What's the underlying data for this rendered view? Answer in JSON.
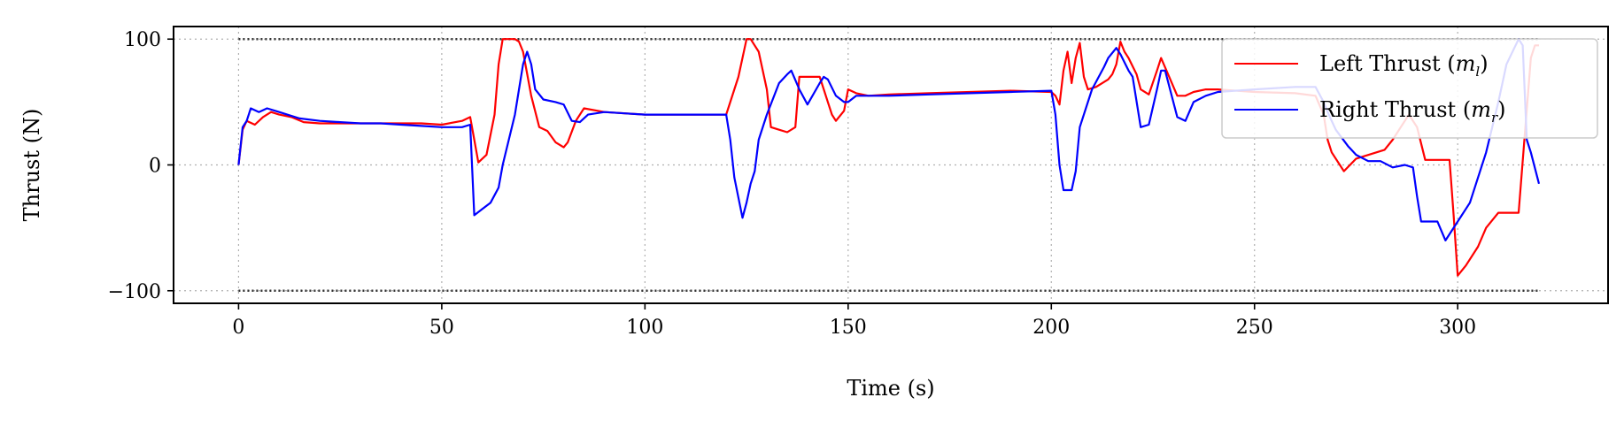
{
  "chart_data": {
    "type": "line",
    "xlabel": "Time (s)",
    "ylabel": "Thrust (N)",
    "xlim": [
      -16,
      337
    ],
    "ylim": [
      -110,
      110
    ],
    "xticks": [
      0,
      50,
      100,
      150,
      200,
      250,
      300
    ],
    "yticks": [
      -100,
      0,
      100
    ],
    "xtick_labels": [
      "0",
      "50",
      "100",
      "150",
      "200",
      "250",
      "300"
    ],
    "ytick_labels": [
      "−100",
      "0",
      "100"
    ],
    "grid": true,
    "limit_lines": [
      100,
      -100
    ],
    "legend_position": "top-right",
    "series": [
      {
        "name": "Left Thrust (m_l)",
        "legend_main": "Left Thrust (",
        "legend_math": "m",
        "legend_sub": "l",
        "legend_close": ")",
        "color": "#ff0000",
        "points": [
          [
            0,
            0
          ],
          [
            1,
            28
          ],
          [
            2,
            35
          ],
          [
            4,
            32
          ],
          [
            6,
            38
          ],
          [
            8,
            42
          ],
          [
            10,
            40
          ],
          [
            13,
            38
          ],
          [
            16,
            34
          ],
          [
            20,
            33
          ],
          [
            25,
            33
          ],
          [
            30,
            33
          ],
          [
            35,
            33
          ],
          [
            40,
            33
          ],
          [
            45,
            33
          ],
          [
            50,
            32
          ],
          [
            55,
            35
          ],
          [
            57,
            38
          ],
          [
            58,
            20
          ],
          [
            59,
            2
          ],
          [
            61,
            8
          ],
          [
            63,
            40
          ],
          [
            64,
            80
          ],
          [
            65,
            100
          ],
          [
            68,
            100
          ],
          [
            69,
            98
          ],
          [
            70,
            90
          ],
          [
            72,
            55
          ],
          [
            74,
            30
          ],
          [
            76,
            27
          ],
          [
            78,
            18
          ],
          [
            80,
            14
          ],
          [
            81,
            18
          ],
          [
            83,
            35
          ],
          [
            85,
            45
          ],
          [
            90,
            42
          ],
          [
            100,
            40
          ],
          [
            110,
            40
          ],
          [
            119,
            40
          ],
          [
            120,
            40
          ],
          [
            121,
            50
          ],
          [
            123,
            70
          ],
          [
            125,
            100
          ],
          [
            126,
            100
          ],
          [
            128,
            90
          ],
          [
            130,
            60
          ],
          [
            131,
            30
          ],
          [
            133,
            28
          ],
          [
            135,
            26
          ],
          [
            137,
            30
          ],
          [
            138,
            70
          ],
          [
            143,
            70
          ],
          [
            144,
            60
          ],
          [
            145,
            50
          ],
          [
            146,
            40
          ],
          [
            147,
            35
          ],
          [
            149,
            43
          ],
          [
            150,
            60
          ],
          [
            152,
            57
          ],
          [
            155,
            55
          ],
          [
            160,
            56
          ],
          [
            170,
            57
          ],
          [
            180,
            58
          ],
          [
            190,
            59
          ],
          [
            200,
            58
          ],
          [
            201,
            55
          ],
          [
            202,
            48
          ],
          [
            203,
            75
          ],
          [
            204,
            90
          ],
          [
            205,
            65
          ],
          [
            206,
            85
          ],
          [
            207,
            97
          ],
          [
            208,
            70
          ],
          [
            209,
            60
          ],
          [
            211,
            62
          ],
          [
            214,
            68
          ],
          [
            215,
            72
          ],
          [
            216,
            80
          ],
          [
            217,
            98
          ],
          [
            218,
            90
          ],
          [
            219,
            85
          ],
          [
            221,
            72
          ],
          [
            222,
            60
          ],
          [
            224,
            56
          ],
          [
            226,
            75
          ],
          [
            227,
            85
          ],
          [
            229,
            70
          ],
          [
            231,
            55
          ],
          [
            233,
            55
          ],
          [
            235,
            58
          ],
          [
            238,
            60
          ],
          [
            241,
            60
          ],
          [
            250,
            58
          ],
          [
            260,
            57
          ],
          [
            265,
            55
          ],
          [
            267,
            40
          ],
          [
            268,
            20
          ],
          [
            269,
            10
          ],
          [
            272,
            -5
          ],
          [
            275,
            5
          ],
          [
            280,
            10
          ],
          [
            282,
            12
          ],
          [
            284,
            20
          ],
          [
            286,
            30
          ],
          [
            288,
            40
          ],
          [
            290,
            30
          ],
          [
            292,
            4
          ],
          [
            298,
            4
          ],
          [
            299,
            -40
          ],
          [
            300,
            -88
          ],
          [
            302,
            -80
          ],
          [
            305,
            -65
          ],
          [
            307,
            -50
          ],
          [
            310,
            -38
          ],
          [
            315,
            -38
          ],
          [
            318,
            85
          ],
          [
            319,
            95
          ],
          [
            320,
            95
          ]
        ]
      },
      {
        "name": "Right Thrust (m_r)",
        "legend_main": "Right Thrust (",
        "legend_math": "m",
        "legend_sub": "r",
        "legend_close": ")",
        "color": "#0000ff",
        "points": [
          [
            0,
            0
          ],
          [
            1,
            30
          ],
          [
            2,
            35
          ],
          [
            3,
            45
          ],
          [
            5,
            42
          ],
          [
            7,
            45
          ],
          [
            10,
            42
          ],
          [
            15,
            37
          ],
          [
            20,
            35
          ],
          [
            25,
            34
          ],
          [
            30,
            33
          ],
          [
            35,
            33
          ],
          [
            40,
            32
          ],
          [
            45,
            31
          ],
          [
            50,
            30
          ],
          [
            55,
            30
          ],
          [
            57,
            32
          ],
          [
            58,
            -40
          ],
          [
            60,
            -35
          ],
          [
            62,
            -30
          ],
          [
            64,
            -18
          ],
          [
            65,
            0
          ],
          [
            68,
            40
          ],
          [
            69,
            60
          ],
          [
            70,
            80
          ],
          [
            71,
            90
          ],
          [
            72,
            80
          ],
          [
            73,
            60
          ],
          [
            75,
            52
          ],
          [
            78,
            50
          ],
          [
            80,
            48
          ],
          [
            82,
            35
          ],
          [
            84,
            34
          ],
          [
            86,
            40
          ],
          [
            90,
            42
          ],
          [
            95,
            41
          ],
          [
            100,
            40
          ],
          [
            110,
            40
          ],
          [
            119,
            40
          ],
          [
            120,
            40
          ],
          [
            121,
            20
          ],
          [
            122,
            -10
          ],
          [
            124,
            -42
          ],
          [
            125,
            -30
          ],
          [
            126,
            -15
          ],
          [
            127,
            -5
          ],
          [
            128,
            20
          ],
          [
            130,
            40
          ],
          [
            133,
            65
          ],
          [
            135,
            72
          ],
          [
            136,
            75
          ],
          [
            138,
            60
          ],
          [
            140,
            48
          ],
          [
            143,
            65
          ],
          [
            144,
            70
          ],
          [
            145,
            68
          ],
          [
            147,
            55
          ],
          [
            149,
            50
          ],
          [
            150,
            50
          ],
          [
            152,
            55
          ],
          [
            155,
            55
          ],
          [
            160,
            55
          ],
          [
            170,
            56
          ],
          [
            180,
            57
          ],
          [
            190,
            58
          ],
          [
            200,
            59
          ],
          [
            201,
            40
          ],
          [
            202,
            0
          ],
          [
            203,
            -20
          ],
          [
            205,
            -20
          ],
          [
            206,
            -5
          ],
          [
            207,
            30
          ],
          [
            210,
            60
          ],
          [
            213,
            78
          ],
          [
            214,
            85
          ],
          [
            216,
            93
          ],
          [
            217,
            88
          ],
          [
            219,
            75
          ],
          [
            220,
            70
          ],
          [
            222,
            30
          ],
          [
            224,
            32
          ],
          [
            226,
            60
          ],
          [
            227,
            75
          ],
          [
            228,
            75
          ],
          [
            231,
            38
          ],
          [
            233,
            35
          ],
          [
            235,
            50
          ],
          [
            238,
            55
          ],
          [
            241,
            58
          ],
          [
            250,
            60
          ],
          [
            260,
            62
          ],
          [
            265,
            62
          ],
          [
            267,
            50
          ],
          [
            268,
            42
          ],
          [
            270,
            28
          ],
          [
            273,
            15
          ],
          [
            275,
            8
          ],
          [
            278,
            3
          ],
          [
            281,
            3
          ],
          [
            284,
            -2
          ],
          [
            287,
            0
          ],
          [
            289,
            -2
          ],
          [
            290,
            -25
          ],
          [
            291,
            -45
          ],
          [
            295,
            -45
          ],
          [
            297,
            -60
          ],
          [
            299,
            -50
          ],
          [
            303,
            -30
          ],
          [
            307,
            10
          ],
          [
            310,
            50
          ],
          [
            312,
            80
          ],
          [
            315,
            100
          ],
          [
            316,
            95
          ],
          [
            317,
            20
          ],
          [
            318,
            10
          ],
          [
            320,
            -15
          ]
        ]
      }
    ]
  }
}
